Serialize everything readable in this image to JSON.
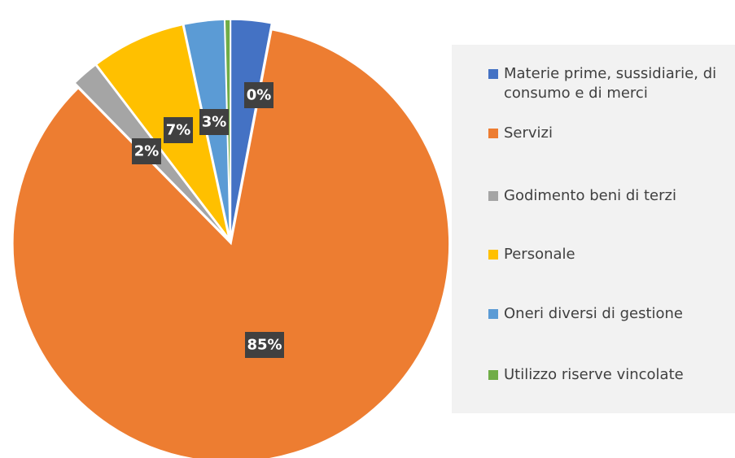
{
  "chart_data": {
    "type": "pie",
    "categories": [
      "Materie prime, sussidiarie, di consumo e di merci",
      "Servizi",
      "Godimento beni di terzi",
      "Personale",
      "Oneri diversi di gestione",
      "Utilizzo riserve vincolate"
    ],
    "values": [
      3,
      85,
      2,
      7,
      3,
      0.4
    ],
    "value_labels": [
      null,
      "85%",
      "2%",
      "7%",
      "3%",
      "0%"
    ],
    "colors": [
      "#4472c4",
      "#ed7d31",
      "#a5a5a5",
      "#ffc000",
      "#5b9bd5",
      "#70ad47"
    ],
    "legend": "right"
  }
}
